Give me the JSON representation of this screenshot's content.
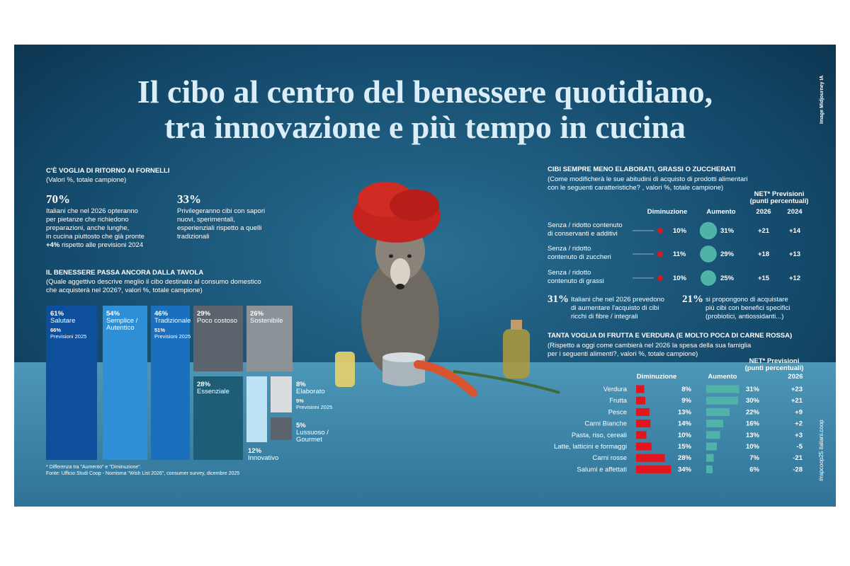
{
  "title": [
    "Il cibo al centro del benessere quotidiano,",
    "tra innovazione e più tempo in cucina"
  ],
  "credit": "Image Midjourney IA",
  "hashtag": "#rapcoop25 italiani.coop",
  "section1": {
    "heading": "C'È VOGLIA DI RITORNO AI FORNELLI",
    "subtitle": "(Valori %, totale campione)",
    "stats": [
      {
        "value_label": "70%",
        "lines": [
          "Italiani che nel 2026 opteranno",
          "per pietanze che richiedono",
          "preparazioni, anche lunghe,",
          "in cucina piuttosto che già pronte"
        ],
        "highlight": "+4%",
        "highlight_text": "rispetto alle previsioni 2024"
      },
      {
        "value_label": "33%",
        "lines": [
          "Privilegeranno cibi con sapori",
          "nuovi, sperimentali,",
          "esperienziali rispetto a quelli",
          "tradizionali"
        ]
      }
    ]
  },
  "section2": {
    "heading": "IL BENESSERE PASSA ANCORA DALLA TAVOLA",
    "subtitle": [
      "(Quale aggettivo descrive meglio il cibo destinato al consumo domestico",
      "che acquisterà nel 2026?, valori %, totale campione)"
    ],
    "tiles": [
      {
        "value": 61,
        "value_label": "61%",
        "label": [
          "Salutare"
        ],
        "forecast_value_label": "66%",
        "forecast_label": "Previsioni 2025"
      },
      {
        "value": 54,
        "value_label": "54%",
        "label": [
          "Semplice /",
          "Autentico"
        ]
      },
      {
        "value": 46,
        "value_label": "46%",
        "label": [
          "Tradizionale"
        ],
        "forecast_value_label": "51%",
        "forecast_label": "Previsioni 2025"
      },
      {
        "value": 29,
        "value_label": "29%",
        "label": [
          "Poco costoso"
        ]
      },
      {
        "value": 28,
        "value_label": "28%",
        "label": [
          "Essenziale"
        ]
      },
      {
        "value": 26,
        "value_label": "26%",
        "label": [
          "Sostenibile"
        ]
      },
      {
        "value": 12,
        "value_label": "12%",
        "label": [
          "Innovativo"
        ]
      },
      {
        "value": 8,
        "value_label": "8%",
        "label": [
          "Elaborato"
        ],
        "forecast_value_label": "5%",
        "forecast_label": "Previsioni 2025"
      },
      {
        "value": 5,
        "value_label": "5%",
        "label": [
          "Lussuoso /",
          "Gourmet"
        ]
      }
    ]
  },
  "footnotes": [
    "* Differenza tra \"Aumento\" e \"Diminuzione\".",
    "Fonte: Ufficio Studi Coop - Nomisma \"Wish List 2026\", consumer survey, dicembre 2025"
  ],
  "section3": {
    "heading": "CIBI SEMPRE MENO ELABORATI, GRASSI O ZUCCHERATI",
    "subtitle": [
      "(Come modificherà le sue abitudini di acquisto di prodotti alimentari",
      "con le seguenti caratteristiche? , valori %, totale campione)"
    ],
    "net_header": [
      "NET* Previsioni",
      "(punti percentuali)"
    ],
    "columns": [
      "Diminuzione",
      "Aumento"
    ],
    "years": [
      "2026",
      "2024"
    ],
    "rows": [
      {
        "label": [
          "Senza / ridotto contenuto",
          "di conservanti e additivi"
        ],
        "decrease": 10,
        "decrease_label": "10%",
        "increase": 31,
        "increase_label": "31%",
        "net_2026": "+21",
        "net_2024": "+14"
      },
      {
        "label": [
          "Senza / ridotto",
          "contenuto di zuccheri"
        ],
        "decrease": 11,
        "decrease_label": "11%",
        "increase": 29,
        "increase_label": "29%",
        "net_2026": "+18",
        "net_2024": "+13"
      },
      {
        "label": [
          "Senza / ridotto",
          "contenuto di grassi"
        ],
        "decrease": 10,
        "decrease_label": "10%",
        "increase": 25,
        "increase_label": "25%",
        "net_2026": "+15",
        "net_2024": "+12"
      }
    ],
    "callouts": [
      {
        "value_label": "31%",
        "lines": [
          "Italiani che nel 2026 prevedono",
          "di aumentare l'acquisto di cibi",
          "ricchi di fibre / integrali"
        ]
      },
      {
        "value_label": "21%",
        "lines": [
          "si propongono di acquistare",
          "più cibi con benefici specifici",
          "(probiotici, antiossidanti...)"
        ]
      }
    ]
  },
  "section4": {
    "heading": "TANTA VOGLIA DI FRUTTA E VERDURA (E MOLTO POCA DI CARNE ROSSA)",
    "subtitle": [
      "(Rispetto a oggi come cambierà nel 2026 la spesa della sua famiglia",
      "per i seguenti alimenti?, valori %, totale campione)"
    ],
    "net_header": [
      "NET* Previsioni",
      "(punti percentuali)"
    ],
    "columns": [
      "Diminuzione",
      "Aumento"
    ],
    "year": "2026",
    "rows": [
      {
        "label": "Verdura",
        "decrease": 8,
        "decrease_label": "8%",
        "increase": 31,
        "increase_label": "31%",
        "net": "+23"
      },
      {
        "label": "Frutta",
        "decrease": 9,
        "decrease_label": "9%",
        "increase": 30,
        "increase_label": "30%",
        "net": "+21"
      },
      {
        "label": "Pesce",
        "decrease": 13,
        "decrease_label": "13%",
        "increase": 22,
        "increase_label": "22%",
        "net": "+9"
      },
      {
        "label": "Carni Bianche",
        "decrease": 14,
        "decrease_label": "14%",
        "increase": 16,
        "increase_label": "16%",
        "net": "+2"
      },
      {
        "label": "Pasta, riso, cereali",
        "decrease": 10,
        "decrease_label": "10%",
        "increase": 13,
        "increase_label": "13%",
        "net": "+3"
      },
      {
        "label": "Latte, latticini e formaggi",
        "decrease": 15,
        "decrease_label": "15%",
        "increase": 10,
        "increase_label": "10%",
        "net": "-5"
      },
      {
        "label": "Carni rosse",
        "decrease": 28,
        "decrease_label": "28%",
        "increase": 7,
        "increase_label": "7%",
        "net": "-21"
      },
      {
        "label": "Salumi e affettati",
        "decrease": 34,
        "decrease_label": "34%",
        "increase": 6,
        "increase_label": "6%",
        "net": "-28"
      }
    ]
  }
}
